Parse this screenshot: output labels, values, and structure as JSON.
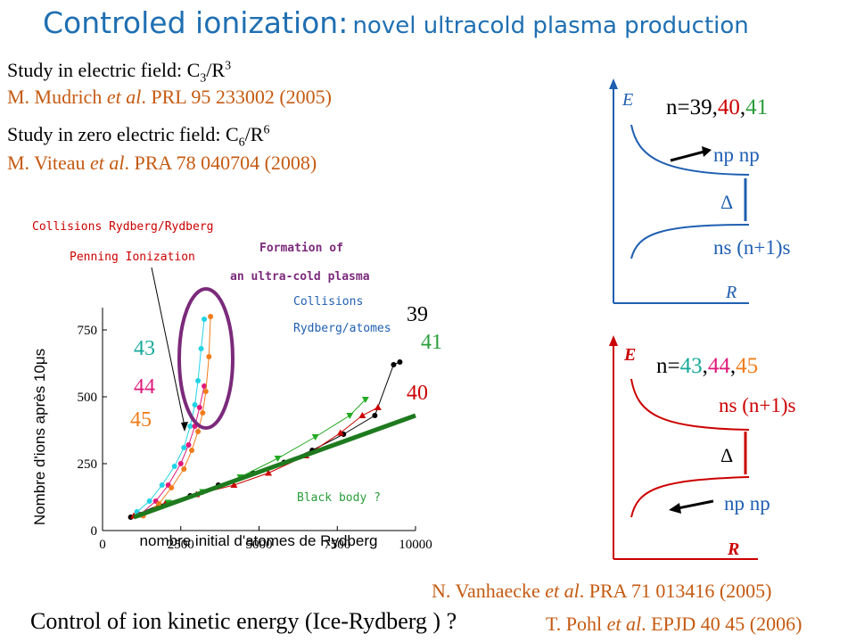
{
  "title": {
    "main": "Controled ionization:",
    "sub": "novel ultracold plasma production"
  },
  "refs": {
    "study1": "Study in electric field: C",
    "study1_sub": "3",
    "study1_mid": "/R",
    "study1_sup": "3",
    "cite1_a": "M. Mudrich ",
    "cite1_b": "et al",
    "cite1_c": ". PRL 95 233002 (2005)",
    "study2": "Study in zero electric field: C",
    "study2_sub": "6",
    "study2_mid": "/R",
    "study2_sup": "6",
    "cite2_a": "M. Viteau ",
    "cite2_b": "et al",
    "cite2_c": ". PRA 78 040704 (2008)",
    "cite3_a": "N. Vanhaecke ",
    "cite3_b": "et al",
    "cite3_c": ". PRA 71 013416 (2005)",
    "cite4_a": "T. Pohl ",
    "cite4_b": "et al",
    "cite4_c": ". EPJD 40 45 (2006)"
  },
  "bottom_question": "Control of ion kinetic energy (Ice-Rydberg ) ?",
  "annotations": {
    "collisions_rr": "Collisions Rydberg/Rydberg",
    "penning": "Penning Ionization",
    "formation_1": "Formation of",
    "formation_2": "an ultra-cold plasma",
    "collisions_atoms_1": "Collisions",
    "collisions_atoms_2": "Rydberg/atomes",
    "black_body": "Black body ?"
  },
  "diagram_top": {
    "e_label": "E",
    "r_label": "R",
    "n_prefix": "n=39,",
    "n_40": "40",
    "n_comma": ",",
    "n_41": "41",
    "np_label": "np np",
    "delta": "Δ",
    "ns_label": "ns (n+1)s",
    "colors": {
      "axis": "#1f5fb2",
      "curve": "#1f5fb2"
    }
  },
  "diagram_bottom": {
    "e_label": "E",
    "r_label": "R",
    "n_prefix": "n=",
    "n_43": "43",
    "n_c1": ",",
    "n_44": "44",
    "n_c2": ",",
    "n_45": "45",
    "ns_label": "ns (n+1)s",
    "delta": "Δ",
    "np_label": "np np",
    "colors": {
      "axis": "#cc0000",
      "curve": "#cc0000"
    }
  },
  "chart_data": {
    "type": "scatter",
    "xlabel": "nombre initial d'atomes de Rydberg",
    "ylabel": "Nombre d'ions après 10μs",
    "xlim": [
      0,
      10000
    ],
    "ylim": [
      0,
      800
    ],
    "xticks": [
      "0",
      "2500",
      "5000",
      "7500",
      "10000"
    ],
    "yticks": [
      "0",
      "250",
      "500",
      "750"
    ],
    "series_labels": {
      "n39": "39",
      "n40": "40",
      "n41": "41",
      "n43": "43",
      "n44": "44",
      "n45": "45"
    },
    "series": [
      {
        "name": "39",
        "color": "#000000",
        "marker": "circle",
        "x": [
          900,
          1800,
          2800,
          3700,
          4800,
          5800,
          6700,
          7700,
          8700,
          9300,
          9500
        ],
        "y": [
          50,
          95,
          130,
          170,
          215,
          255,
          300,
          360,
          430,
          620,
          630
        ]
      },
      {
        "name": "40",
        "color": "#cc0000",
        "marker": "triangle",
        "x": [
          1000,
          2000,
          3000,
          4200,
          5300,
          6500,
          7600,
          8300,
          8800
        ],
        "y": [
          55,
          100,
          135,
          170,
          215,
          280,
          365,
          430,
          460
        ]
      },
      {
        "name": "41",
        "color": "#22aa22",
        "marker": "triangle-down",
        "x": [
          1200,
          2100,
          3200,
          4400,
          5600,
          6800,
          7900,
          8400
        ],
        "y": [
          60,
          105,
          145,
          200,
          270,
          350,
          430,
          490
        ]
      },
      {
        "name": "43",
        "color": "#22d3e6",
        "marker": "circle",
        "x": [
          1100,
          1500,
          1900,
          2300,
          2600,
          2800,
          2950,
          3050,
          3150,
          3250
        ],
        "y": [
          70,
          110,
          170,
          240,
          310,
          390,
          470,
          560,
          680,
          790
        ]
      },
      {
        "name": "44",
        "color": "#e0197a",
        "marker": "circle",
        "x": [
          1200,
          1700,
          2100,
          2500,
          2750,
          2950,
          3100,
          3250
        ],
        "y": [
          60,
          110,
          170,
          250,
          320,
          390,
          460,
          540
        ]
      },
      {
        "name": "45",
        "color": "#f07c1a",
        "marker": "circle",
        "x": [
          1300,
          1800,
          2200,
          2600,
          2850,
          3050,
          3200,
          3300,
          3400,
          3450
        ],
        "y": [
          55,
          100,
          160,
          230,
          300,
          370,
          440,
          520,
          650,
          800
        ]
      },
      {
        "name": "",
        "color": "#1e7a1e",
        "marker": "line",
        "x": [
          1000,
          10000
        ],
        "y": [
          50,
          430
        ]
      }
    ]
  }
}
